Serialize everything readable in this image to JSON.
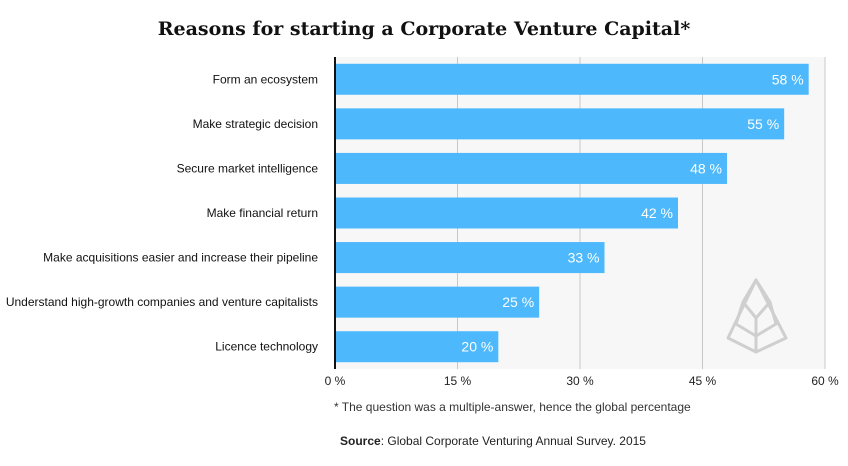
{
  "chart_data": {
    "type": "bar",
    "orientation": "horizontal",
    "title": "Reasons for starting a Corporate Venture Capital*",
    "categories": [
      "Form an ecosystem",
      "Make strategic decision",
      "Secure market intelligence",
      "Make financial return",
      "Make acquisitions easier and increase their pipeline",
      "Understand high-growth companies and venture capitalists",
      "Licence technology"
    ],
    "values": [
      58,
      55,
      48,
      42,
      33,
      25,
      20
    ],
    "value_labels": [
      "58 %",
      "55 %",
      "48 %",
      "42 %",
      "33 %",
      "25 %",
      "20 %"
    ],
    "xlim": [
      0,
      60
    ],
    "xticks": [
      0,
      15,
      30,
      45,
      60
    ],
    "xtick_labels": [
      "0 %",
      "15 %",
      "30 %",
      "45 %",
      "60 %"
    ],
    "bar_color": "#4db8fb",
    "grid": true
  },
  "footnote": "* The question was a multiple-answer, hence the global percentage",
  "source": {
    "label": "Source",
    "text": ": Global Corporate Venturing Annual Survey. 2015"
  }
}
